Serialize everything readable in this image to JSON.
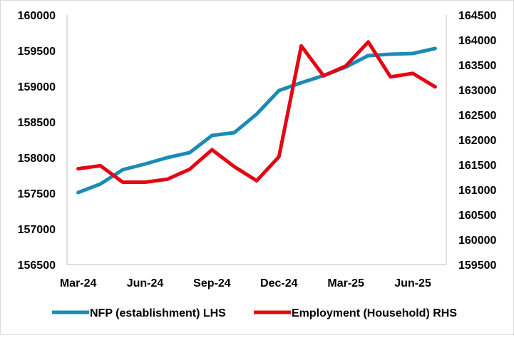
{
  "chart_data": {
    "type": "line",
    "x": [
      "Mar-24",
      "Apr-24",
      "May-24",
      "Jun-24",
      "Jul-24",
      "Aug-24",
      "Sep-24",
      "Oct-24",
      "Nov-24",
      "Dec-24",
      "Jan-25",
      "Feb-25",
      "Mar-25",
      "Apr-25",
      "May-25",
      "Jun-25",
      "Jul-25"
    ],
    "x_tick_labels": [
      "Mar-24",
      "Jun-24",
      "Sep-24",
      "Dec-24",
      "Mar-25",
      "Jun-25"
    ],
    "series": [
      {
        "name": "NFP (establishment) LHS",
        "axis": "left",
        "color": "#1b8bb4",
        "values": [
          157510,
          157630,
          157830,
          157910,
          158000,
          158070,
          158310,
          158350,
          158610,
          158940,
          159050,
          159150,
          159270,
          159430,
          159450,
          159460,
          159530
        ]
      },
      {
        "name": "Employment (Household) RHS",
        "axis": "right",
        "color": "#e30613",
        "values": [
          161420,
          161480,
          161150,
          161150,
          161210,
          161410,
          161800,
          161460,
          161180,
          161660,
          163880,
          163280,
          163480,
          163960,
          163260,
          163330,
          163060
        ]
      }
    ],
    "y_left": {
      "min": 156500,
      "max": 160000,
      "step": 500,
      "ticks": [
        "156500",
        "157000",
        "157500",
        "158000",
        "158500",
        "159000",
        "159500",
        "160000"
      ]
    },
    "y_right": {
      "min": 159500,
      "max": 164500,
      "step": 500,
      "ticks": [
        "159500",
        "160000",
        "160500",
        "161000",
        "161500",
        "162000",
        "162500",
        "163000",
        "163500",
        "164000",
        "164500"
      ]
    },
    "grid": false,
    "legend": {
      "position": "bottom",
      "entries": [
        "NFP (establishment) LHS",
        "Employment (Household) RHS"
      ]
    }
  }
}
